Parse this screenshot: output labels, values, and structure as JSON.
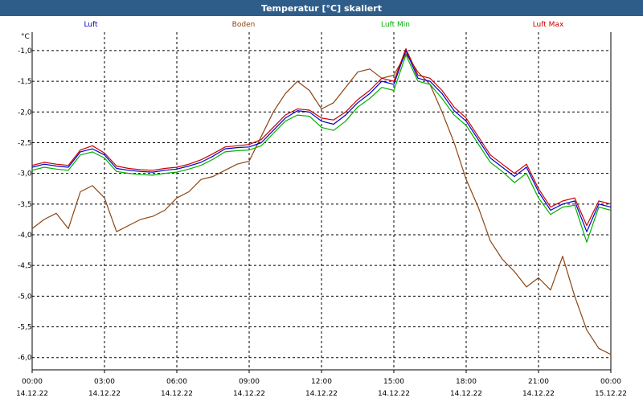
{
  "window": {
    "title": "Temperatur [°C] skaliert"
  },
  "chart_data": {
    "type": "line",
    "title": "Temperatur [°C] skaliert",
    "ylabel": "°C",
    "xlabel": "",
    "ylim": [
      -6.2,
      -0.7
    ],
    "xlim": [
      0,
      24
    ],
    "y_ticks": [
      -1.0,
      -1.5,
      -2.0,
      -2.5,
      -3.0,
      -3.5,
      -4.0,
      -4.5,
      -5.0,
      -5.5,
      -6.0
    ],
    "y_tick_labels": [
      "-1,0",
      "-1,5",
      "-2,0",
      "-2,5",
      "-3,0",
      "-3,5",
      "-4,0",
      "-4,5",
      "-5,0",
      "-5,5",
      "-6,0"
    ],
    "x_ticks": [
      0,
      3,
      6,
      9,
      12,
      15,
      18,
      21,
      24
    ],
    "x_tick_labels": [
      {
        "time": "00:00",
        "date": "14.12.22"
      },
      {
        "time": "03:00",
        "date": "14.12.22"
      },
      {
        "time": "06:00",
        "date": "14.12.22"
      },
      {
        "time": "09:00",
        "date": "14.12.22"
      },
      {
        "time": "12:00",
        "date": "14.12.22"
      },
      {
        "time": "15:00",
        "date": "14.12.22"
      },
      {
        "time": "18:00",
        "date": "14.12.22"
      },
      {
        "time": "21:00",
        "date": "14.12.22"
      },
      {
        "time": "00:00",
        "date": "15.12.22"
      }
    ],
    "grid": true,
    "legend": [
      {
        "name": "Luft",
        "color": "#0000cc"
      },
      {
        "name": "Boden",
        "color": "#8b4513"
      },
      {
        "name": "Luft Min",
        "color": "#00b000"
      },
      {
        "name": "Luft Max",
        "color": "#cc0000"
      }
    ],
    "x": [
      0,
      0.5,
      1,
      1.5,
      2,
      2.5,
      3,
      3.5,
      4,
      4.5,
      5,
      5.5,
      6,
      6.5,
      7,
      7.5,
      8,
      8.5,
      9,
      9.5,
      10,
      10.5,
      11,
      11.5,
      12,
      12.5,
      13,
      13.5,
      14,
      14.5,
      15,
      15.5,
      16,
      16.5,
      17,
      17.5,
      18,
      18.5,
      19,
      19.5,
      20,
      20.5,
      21,
      21.5,
      22,
      22.5,
      23,
      23.5,
      24
    ],
    "series": [
      {
        "name": "Luft",
        "color": "#0000cc",
        "values": [
          -2.9,
          -2.85,
          -2.88,
          -2.9,
          -2.65,
          -2.6,
          -2.7,
          -2.92,
          -2.95,
          -2.97,
          -2.98,
          -2.95,
          -2.93,
          -2.88,
          -2.82,
          -2.72,
          -2.6,
          -2.58,
          -2.57,
          -2.5,
          -2.3,
          -2.1,
          -1.98,
          -2.0,
          -2.15,
          -2.2,
          -2.05,
          -1.85,
          -1.7,
          -1.5,
          -1.55,
          -1.0,
          -1.45,
          -1.5,
          -1.7,
          -1.98,
          -2.15,
          -2.45,
          -2.75,
          -2.9,
          -3.05,
          -2.9,
          -3.3,
          -3.6,
          -3.5,
          -3.45,
          -3.95,
          -3.5,
          -3.55
        ]
      },
      {
        "name": "Boden",
        "color": "#8b4513",
        "values": [
          -3.9,
          -3.75,
          -3.65,
          -3.9,
          -3.3,
          -3.2,
          -3.4,
          -3.95,
          -3.85,
          -3.75,
          -3.7,
          -3.6,
          -3.4,
          -3.3,
          -3.1,
          -3.05,
          -2.95,
          -2.85,
          -2.8,
          -2.4,
          -2.0,
          -1.7,
          -1.5,
          -1.65,
          -1.95,
          -1.85,
          -1.6,
          -1.35,
          -1.3,
          -1.45,
          -1.4,
          -1.05,
          -1.35,
          -1.55,
          -2.0,
          -2.5,
          -3.1,
          -3.55,
          -4.1,
          -4.4,
          -4.6,
          -4.85,
          -4.7,
          -4.9,
          -4.35,
          -5.0,
          -5.55,
          -5.85,
          -5.95
        ]
      },
      {
        "name": "Luft Min",
        "color": "#00b000",
        "values": [
          -2.95,
          -2.9,
          -2.93,
          -2.95,
          -2.7,
          -2.65,
          -2.75,
          -2.97,
          -3.0,
          -3.02,
          -3.03,
          -3.0,
          -2.98,
          -2.93,
          -2.87,
          -2.77,
          -2.65,
          -2.63,
          -2.62,
          -2.55,
          -2.35,
          -2.15,
          -2.05,
          -2.07,
          -2.25,
          -2.3,
          -2.15,
          -1.92,
          -1.78,
          -1.6,
          -1.65,
          -1.07,
          -1.5,
          -1.55,
          -1.78,
          -2.05,
          -2.22,
          -2.52,
          -2.82,
          -2.97,
          -3.15,
          -3.0,
          -3.4,
          -3.67,
          -3.55,
          -3.52,
          -4.12,
          -3.55,
          -3.6
        ]
      },
      {
        "name": "Luft Max",
        "color": "#cc0000",
        "values": [
          -2.87,
          -2.82,
          -2.85,
          -2.87,
          -2.62,
          -2.55,
          -2.67,
          -2.88,
          -2.92,
          -2.94,
          -2.95,
          -2.92,
          -2.9,
          -2.85,
          -2.78,
          -2.68,
          -2.57,
          -2.55,
          -2.53,
          -2.45,
          -2.25,
          -2.05,
          -1.95,
          -1.97,
          -2.1,
          -2.13,
          -2.0,
          -1.8,
          -1.65,
          -1.45,
          -1.5,
          -0.97,
          -1.4,
          -1.45,
          -1.65,
          -1.92,
          -2.1,
          -2.4,
          -2.7,
          -2.85,
          -3.0,
          -2.85,
          -3.25,
          -3.55,
          -3.45,
          -3.4,
          -3.85,
          -3.45,
          -3.5
        ]
      }
    ]
  }
}
